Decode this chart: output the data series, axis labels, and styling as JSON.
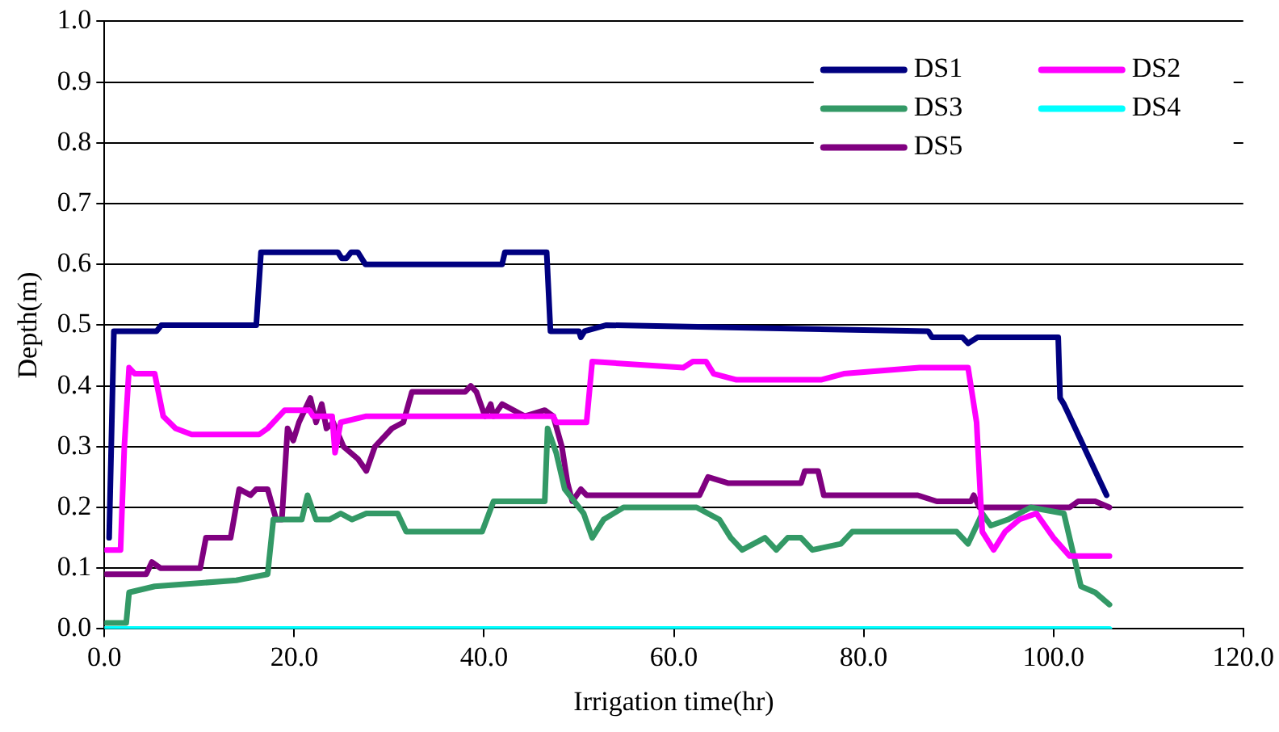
{
  "chart_data": {
    "type": "line",
    "xlabel": "Irrigation time(hr)",
    "ylabel": "Depth(m)",
    "xlim": [
      0,
      120
    ],
    "ylim": [
      0,
      1
    ],
    "xticks": [
      {
        "value": 0,
        "label": "0.0"
      },
      {
        "value": 20,
        "label": "20.0"
      },
      {
        "value": 40,
        "label": "40.0"
      },
      {
        "value": 60,
        "label": "60.0"
      },
      {
        "value": 80,
        "label": "80.0"
      },
      {
        "value": 100,
        "label": "100.0"
      },
      {
        "value": 120,
        "label": "120.0"
      }
    ],
    "yticks": [
      {
        "value": 0,
        "label": "0.0"
      },
      {
        "value": 0.1,
        "label": "0.1"
      },
      {
        "value": 0.2,
        "label": "0.2"
      },
      {
        "value": 0.3,
        "label": "0.3"
      },
      {
        "value": 0.4,
        "label": "0.4"
      },
      {
        "value": 0.5,
        "label": "0.5"
      },
      {
        "value": 0.6,
        "label": "0.6"
      },
      {
        "value": 0.7,
        "label": "0.7"
      },
      {
        "value": 0.8,
        "label": "0.8"
      },
      {
        "value": 0.9,
        "label": "0.9"
      },
      {
        "value": 1,
        "label": "1.0"
      }
    ],
    "grid": "y",
    "legend": "top right",
    "marker": "none",
    "line_style": "solid",
    "series": [
      {
        "name": "DS1",
        "color": "#000080",
        "x": [
          0.5,
          1.0,
          5.5,
          6,
          16,
          16.5,
          24.6,
          25,
          25.5,
          26,
          26.7,
          27.5,
          41.9,
          42.2,
          46.6,
          47,
          50,
          50.2,
          50.6,
          52.9,
          86.8,
          87.2,
          90.4,
          91,
          92,
          100.5,
          100.7,
          101.1,
          105.6
        ],
        "values": [
          0.15,
          0.49,
          0.49,
          0.5,
          0.5,
          0.62,
          0.62,
          0.61,
          0.61,
          0.62,
          0.62,
          0.6,
          0.6,
          0.62,
          0.62,
          0.49,
          0.49,
          0.48,
          0.49,
          0.5,
          0.49,
          0.48,
          0.48,
          0.47,
          0.48,
          0.48,
          0.38,
          0.37,
          0.22
        ]
      },
      {
        "name": "DS2",
        "color": "#ff00ff",
        "x": [
          0.2,
          1.7,
          2.1,
          2.6,
          3.2,
          5.3,
          6.2,
          7.5,
          9.2,
          16.3,
          17.2,
          19,
          21.6,
          22,
          24,
          24.3,
          24.9,
          27.6,
          47.3,
          47.6,
          50.8,
          51.4,
          61,
          62,
          63.4,
          64.2,
          66.6,
          74.3,
          75.5,
          77.9,
          85.9,
          91,
          91.9,
          92.5,
          93.7,
          94.9,
          96.4,
          98.2,
          100,
          101.7,
          105.9
        ],
        "values": [
          0.13,
          0.13,
          0.3,
          0.43,
          0.42,
          0.42,
          0.35,
          0.33,
          0.32,
          0.32,
          0.33,
          0.36,
          0.36,
          0.35,
          0.35,
          0.29,
          0.34,
          0.35,
          0.35,
          0.34,
          0.34,
          0.44,
          0.43,
          0.44,
          0.44,
          0.42,
          0.41,
          0.41,
          0.41,
          0.42,
          0.43,
          0.43,
          0.34,
          0.16,
          0.13,
          0.16,
          0.18,
          0.19,
          0.15,
          0.12,
          0.12
        ]
      },
      {
        "name": "DS3",
        "color": "#339966",
        "x": [
          0.2,
          2.3,
          2.6,
          5.3,
          13.9,
          17.2,
          17.8,
          20.8,
          21.4,
          22.3,
          23.7,
          24.9,
          26.1,
          27.6,
          30.9,
          31.8,
          39.8,
          41,
          46.4,
          46.7,
          47.6,
          48.5,
          50.5,
          51.4,
          52.6,
          54.7,
          62.4,
          64.8,
          66,
          67.2,
          69.6,
          70.8,
          72,
          73.4,
          74.6,
          77.6,
          78.8,
          89.8,
          91,
          92.5,
          93.4,
          95.2,
          97.6,
          101.1,
          101.7,
          102.9,
          104.4,
          105.9
        ],
        "values": [
          0.01,
          0.01,
          0.06,
          0.07,
          0.08,
          0.09,
          0.18,
          0.18,
          0.22,
          0.18,
          0.18,
          0.19,
          0.18,
          0.19,
          0.19,
          0.16,
          0.16,
          0.21,
          0.21,
          0.33,
          0.29,
          0.23,
          0.19,
          0.15,
          0.18,
          0.2,
          0.2,
          0.18,
          0.15,
          0.13,
          0.15,
          0.13,
          0.15,
          0.15,
          0.13,
          0.14,
          0.16,
          0.16,
          0.14,
          0.19,
          0.17,
          0.18,
          0.2,
          0.19,
          0.15,
          0.07,
          0.06,
          0.04
        ]
      },
      {
        "name": "DS4",
        "color": "#00ffff",
        "x": [
          0,
          105.9
        ],
        "values": [
          0,
          0
        ]
      },
      {
        "name": "DS5",
        "color": "#800080",
        "x": [
          0.2,
          4.4,
          5,
          5.9,
          10.1,
          10.7,
          13.3,
          14.2,
          15.4,
          16,
          17.2,
          18.1,
          18.7,
          19.3,
          19.9,
          20.5,
          21.7,
          22.3,
          22.9,
          23.4,
          24.1,
          25.2,
          26.7,
          27.6,
          28.5,
          30.3,
          31.5,
          32.4,
          38,
          38.6,
          39.2,
          40.1,
          40.7,
          41,
          41.9,
          44.3,
          46.4,
          47.3,
          48.2,
          48.8,
          49.3,
          50.2,
          50.8,
          62.7,
          63.6,
          65.7,
          73.4,
          73.8,
          75.2,
          75.8,
          84.8,
          85.7,
          87.7,
          88.3,
          91.3,
          91.6,
          92.2,
          101.7,
          102.6,
          104.4,
          105.9
        ],
        "values": [
          0.09,
          0.09,
          0.11,
          0.1,
          0.1,
          0.15,
          0.15,
          0.23,
          0.22,
          0.23,
          0.23,
          0.18,
          0.18,
          0.33,
          0.31,
          0.34,
          0.38,
          0.34,
          0.37,
          0.33,
          0.34,
          0.3,
          0.28,
          0.26,
          0.3,
          0.33,
          0.34,
          0.39,
          0.39,
          0.4,
          0.39,
          0.35,
          0.37,
          0.35,
          0.37,
          0.35,
          0.36,
          0.35,
          0.3,
          0.24,
          0.21,
          0.23,
          0.22,
          0.22,
          0.25,
          0.24,
          0.24,
          0.26,
          0.26,
          0.22,
          0.22,
          0.22,
          0.21,
          0.21,
          0.21,
          0.22,
          0.2,
          0.2,
          0.21,
          0.21,
          0.2
        ]
      }
    ]
  }
}
